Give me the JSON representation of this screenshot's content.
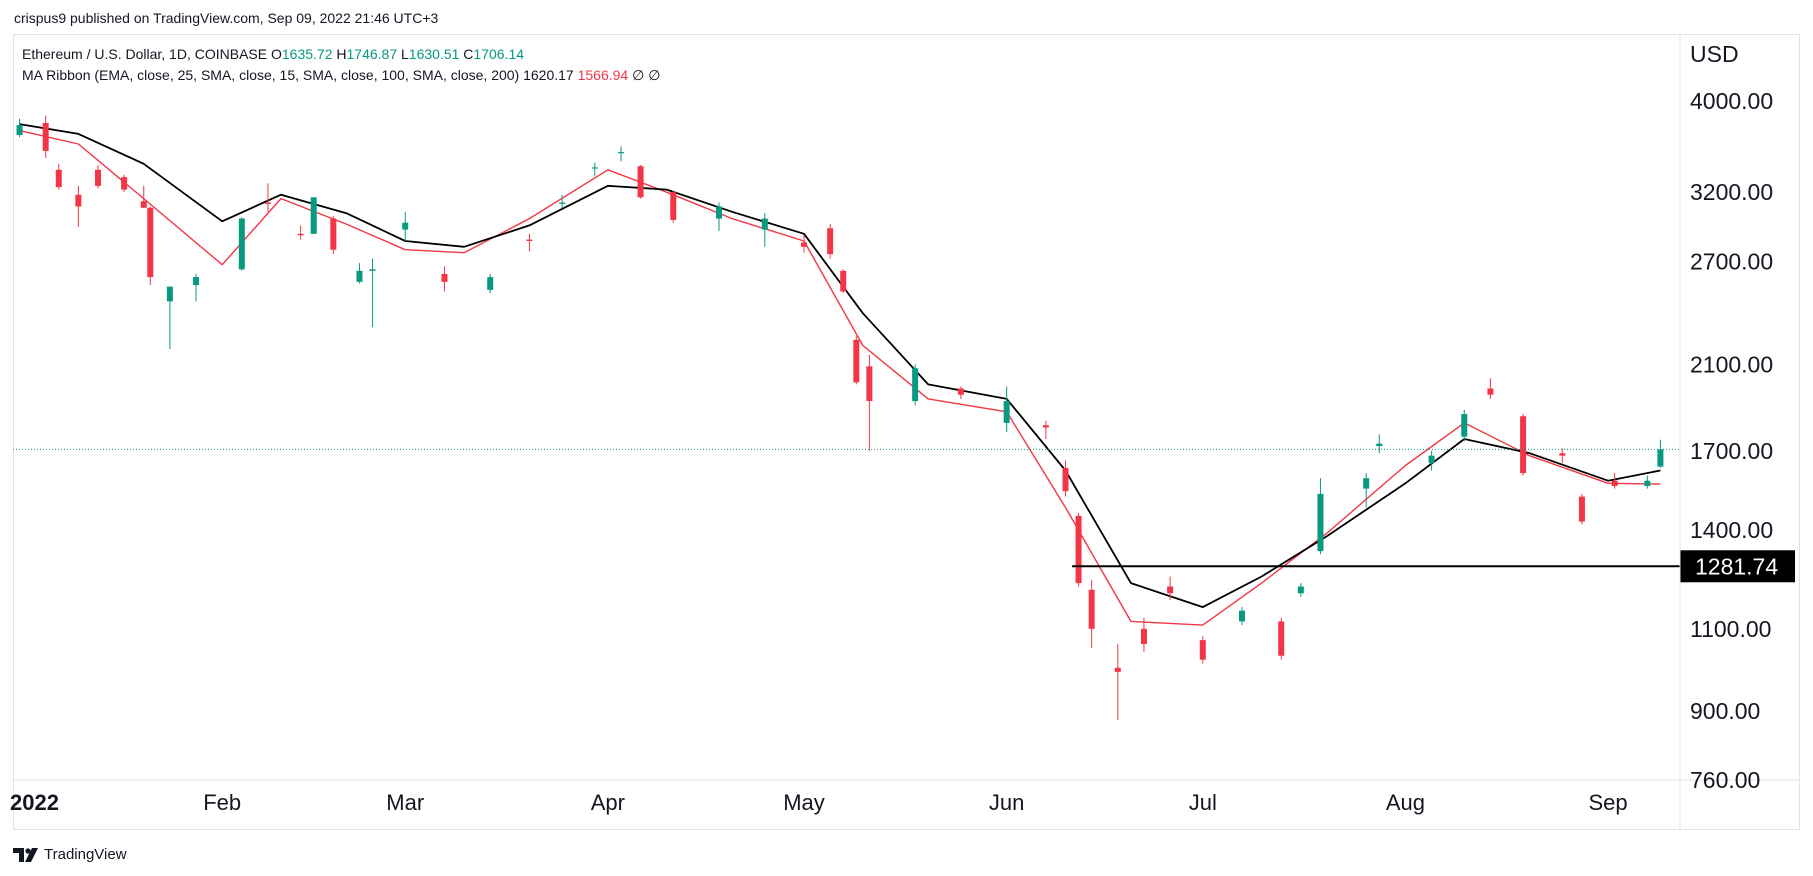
{
  "publisher": "crispus9 published on TradingView.com, Sep 09, 2022 21:46 UTC+3",
  "legend": {
    "symbol": "Ethereum / U.S. Dollar, 1D, COINBASE",
    "o_label": "O",
    "o": "1635.72",
    "h_label": "H",
    "h": "1746.87",
    "l_label": "L",
    "l": "1630.51",
    "c_label": "C",
    "c": "1706.14",
    "ma_label": "MA Ribbon (EMA, close, 25, SMA, close, 15, SMA, close, 100, SMA, close, 200)",
    "ma1": "1620.17",
    "ma2": "1566.94",
    "ma3": "∅",
    "ma4": "∅"
  },
  "footer": {
    "brand": "TradingView"
  },
  "colors": {
    "up": "#089981",
    "down": "#f23645",
    "ma_fast": "#f23645",
    "ma_slow": "#000000",
    "price_line": "#089981",
    "support": "#000000"
  },
  "chart_data": {
    "type": "candlestick",
    "title": "Ethereum / U.S. Dollar, 1D, COINBASE",
    "y_axis_unit": "USD",
    "y_ticks": [
      "4000.00",
      "3200.00",
      "2700.00",
      "2100.00",
      "1700.00",
      "1400.00",
      "1100.00",
      "900.00",
      "760.00"
    ],
    "y_scale": "log",
    "y_range": [
      760,
      4700
    ],
    "x_ticks": [
      "2022",
      "Feb",
      "Mar",
      "Apr",
      "May",
      "Jun",
      "Jul",
      "Aug",
      "Sep"
    ],
    "x_range": [
      "2021-12-31",
      "2022-09-12"
    ],
    "current_price": 1706.14,
    "horizontal_level": {
      "value": 1281.74,
      "label": "1281.74",
      "from": "2022-06-11"
    },
    "series": [
      {
        "name": "EMA 25",
        "color": "#000000",
        "type": "line",
        "dates": [
          "2022-01-01",
          "2022-01-10",
          "2022-01-20",
          "2022-02-01",
          "2022-02-10",
          "2022-02-20",
          "2022-03-01",
          "2022-03-10",
          "2022-03-20",
          "2022-04-01",
          "2022-04-10",
          "2022-04-20",
          "2022-05-01",
          "2022-05-10",
          "2022-05-20",
          "2022-06-01",
          "2022-06-10",
          "2022-06-20",
          "2022-07-01",
          "2022-07-10",
          "2022-07-20",
          "2022-08-01",
          "2022-08-10",
          "2022-08-20",
          "2022-09-01",
          "2022-09-09"
        ],
        "values": [
          3780,
          3690,
          3430,
          2980,
          3180,
          3040,
          2840,
          2800,
          2950,
          3250,
          3220,
          3050,
          2890,
          2380,
          2000,
          1930,
          1620,
          1230,
          1160,
          1250,
          1380,
          1570,
          1750,
          1690,
          1580,
          1620
        ]
      },
      {
        "name": "SMA 15",
        "color": "#f23645",
        "type": "line",
        "dates": [
          "2022-01-01",
          "2022-01-10",
          "2022-01-20",
          "2022-02-01",
          "2022-02-10",
          "2022-02-20",
          "2022-03-01",
          "2022-03-10",
          "2022-03-20",
          "2022-04-01",
          "2022-04-10",
          "2022-04-20",
          "2022-05-01",
          "2022-05-10",
          "2022-05-20",
          "2022-06-01",
          "2022-06-10",
          "2022-06-20",
          "2022-07-01",
          "2022-07-10",
          "2022-07-20",
          "2022-08-01",
          "2022-08-10",
          "2022-08-20",
          "2022-09-01",
          "2022-09-09"
        ],
        "values": [
          3720,
          3600,
          3150,
          2680,
          3150,
          2960,
          2780,
          2760,
          3000,
          3380,
          3200,
          3000,
          2840,
          2200,
          1930,
          1870,
          1480,
          1120,
          1110,
          1230,
          1390,
          1640,
          1820,
          1680,
          1570,
          1567
        ]
      }
    ],
    "candles": {
      "fields": [
        "date",
        "open",
        "high",
        "low",
        "close"
      ],
      "data": [
        [
          "2022-01-01",
          3680,
          3830,
          3660,
          3770
        ],
        [
          "2022-01-05",
          3790,
          3860,
          3480,
          3540
        ],
        [
          "2022-01-07",
          3380,
          3430,
          3220,
          3240
        ],
        [
          "2022-01-10",
          3180,
          3250,
          2940,
          3090
        ],
        [
          "2022-01-13",
          3380,
          3420,
          3230,
          3250
        ],
        [
          "2022-01-17",
          3320,
          3340,
          3200,
          3220
        ],
        [
          "2022-01-20",
          3130,
          3250,
          3080,
          3080
        ],
        [
          "2022-01-21",
          3080,
          3090,
          2550,
          2600
        ],
        [
          "2022-01-24",
          2450,
          2480,
          2180,
          2540
        ],
        [
          "2022-01-28",
          2550,
          2620,
          2450,
          2600
        ],
        [
          "2022-02-04",
          2650,
          3010,
          2640,
          3000
        ],
        [
          "2022-02-08",
          3120,
          3270,
          3050,
          3110
        ],
        [
          "2022-02-13",
          2890,
          2950,
          2850,
          2880
        ],
        [
          "2022-02-15",
          2890,
          3160,
          2890,
          3160
        ],
        [
          "2022-02-18",
          3000,
          3020,
          2750,
          2780
        ],
        [
          "2022-02-22",
          2570,
          2690,
          2560,
          2640
        ],
        [
          "2022-02-24",
          2640,
          2720,
          2300,
          2650
        ],
        [
          "2022-03-01",
          2920,
          3050,
          2840,
          2970
        ],
        [
          "2022-03-07",
          2620,
          2670,
          2510,
          2570
        ],
        [
          "2022-03-14",
          2520,
          2620,
          2500,
          2600
        ],
        [
          "2022-03-20",
          2850,
          2890,
          2770,
          2840
        ],
        [
          "2022-03-25",
          3110,
          3180,
          3080,
          3120
        ],
        [
          "2022-03-30",
          3390,
          3440,
          3330,
          3400
        ],
        [
          "2022-04-03",
          3520,
          3580,
          3450,
          3530
        ],
        [
          "2022-04-06",
          3410,
          3420,
          3150,
          3160
        ],
        [
          "2022-04-11",
          3200,
          3210,
          2970,
          2990
        ],
        [
          "2022-04-18",
          3000,
          3120,
          2910,
          3090
        ],
        [
          "2022-04-25",
          2920,
          3040,
          2800,
          3000
        ],
        [
          "2022-05-01",
          2830,
          2880,
          2760,
          2800
        ],
        [
          "2022-05-05",
          2930,
          2960,
          2720,
          2750
        ],
        [
          "2022-05-07",
          2640,
          2650,
          2500,
          2510
        ],
        [
          "2022-05-09",
          2230,
          2250,
          2000,
          2010
        ],
        [
          "2022-05-11",
          2090,
          2150,
          1700,
          1920
        ],
        [
          "2022-05-18",
          1920,
          2100,
          1900,
          2080
        ],
        [
          "2022-05-25",
          1980,
          1990,
          1930,
          1950
        ],
        [
          "2022-06-01",
          1820,
          1990,
          1780,
          1920
        ],
        [
          "2022-06-07",
          1810,
          1830,
          1750,
          1800
        ],
        [
          "2022-06-10",
          1630,
          1660,
          1520,
          1540
        ],
        [
          "2022-06-12",
          1450,
          1460,
          1220,
          1230
        ],
        [
          "2022-06-14",
          1210,
          1240,
          1050,
          1100
        ],
        [
          "2022-06-18",
          1000,
          1060,
          880,
          990
        ],
        [
          "2022-06-22",
          1100,
          1130,
          1040,
          1060
        ],
        [
          "2022-06-26",
          1220,
          1250,
          1180,
          1200
        ],
        [
          "2022-07-01",
          1070,
          1080,
          1010,
          1020
        ],
        [
          "2022-07-07",
          1120,
          1160,
          1110,
          1150
        ],
        [
          "2022-07-13",
          1120,
          1130,
          1020,
          1030
        ],
        [
          "2022-07-16",
          1200,
          1230,
          1190,
          1220
        ],
        [
          "2022-07-19",
          1330,
          1590,
          1320,
          1530
        ],
        [
          "2022-07-26",
          1550,
          1610,
          1480,
          1590
        ],
        [
          "2022-07-28",
          1720,
          1770,
          1690,
          1730
        ],
        [
          "2022-08-05",
          1650,
          1700,
          1620,
          1680
        ],
        [
          "2022-08-10",
          1760,
          1880,
          1740,
          1860
        ],
        [
          "2022-08-14",
          1980,
          2030,
          1930,
          1950
        ],
        [
          "2022-08-19",
          1850,
          1860,
          1600,
          1610
        ],
        [
          "2022-08-25",
          1690,
          1710,
          1650,
          1680
        ],
        [
          "2022-08-28",
          1520,
          1530,
          1420,
          1430
        ],
        [
          "2022-09-02",
          1580,
          1610,
          1550,
          1560
        ],
        [
          "2022-09-07",
          1560,
          1600,
          1550,
          1580
        ],
        [
          "2022-09-09",
          1635.72,
          1746.87,
          1630.51,
          1706.14
        ]
      ]
    }
  }
}
